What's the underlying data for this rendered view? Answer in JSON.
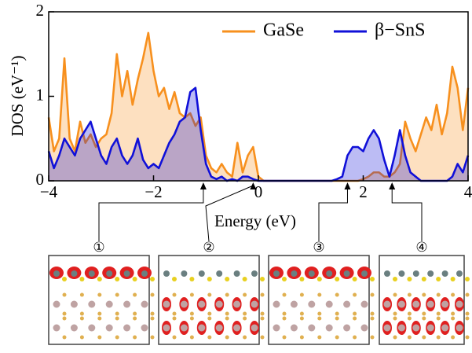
{
  "chart_data": {
    "type": "line",
    "xlabel": "Energy (eV)",
    "ylabel": "DOS (eV⁻¹)",
    "xlim": [
      -4,
      4
    ],
    "ylim": [
      0,
      2
    ],
    "xticks": [
      {
        "value": -4,
        "label": "−4"
      },
      {
        "value": -2,
        "label": "−2"
      },
      0,
      2,
      4
    ],
    "yticks": [
      0,
      1,
      2
    ],
    "fill": true,
    "legend": "top-right",
    "x": [
      -4.0,
      -3.9,
      -3.8,
      -3.7,
      -3.6,
      -3.5,
      -3.4,
      -3.3,
      -3.2,
      -3.1,
      -3.0,
      -2.9,
      -2.8,
      -2.7,
      -2.6,
      -2.5,
      -2.4,
      -2.3,
      -2.2,
      -2.1,
      -2.0,
      -1.9,
      -1.8,
      -1.7,
      -1.6,
      -1.5,
      -1.4,
      -1.3,
      -1.2,
      -1.1,
      -1.0,
      -0.9,
      -0.8,
      -0.7,
      -0.6,
      -0.5,
      -0.4,
      -0.3,
      -0.2,
      -0.1,
      0.0,
      0.1,
      0.2,
      0.3,
      0.4,
      0.5,
      0.6,
      0.7,
      0.8,
      0.9,
      1.0,
      1.1,
      1.2,
      1.3,
      1.4,
      1.5,
      1.6,
      1.7,
      1.8,
      1.9,
      2.0,
      2.1,
      2.2,
      2.3,
      2.4,
      2.5,
      2.6,
      2.7,
      2.8,
      2.9,
      3.0,
      3.1,
      3.2,
      3.3,
      3.4,
      3.5,
      3.6,
      3.7,
      3.8,
      3.9,
      4.0
    ],
    "series": [
      {
        "name": "GaSe",
        "color": "#f7901e",
        "values": [
          0.75,
          0.35,
          0.5,
          1.45,
          0.5,
          0.35,
          0.7,
          0.45,
          0.55,
          0.4,
          0.5,
          0.55,
          0.8,
          1.5,
          1.0,
          1.3,
          0.9,
          1.2,
          1.45,
          1.75,
          1.3,
          1.0,
          1.1,
          0.85,
          1.05,
          0.8,
          0.75,
          0.8,
          0.65,
          0.75,
          0.3,
          0.15,
          0.1,
          0.2,
          0.1,
          0.05,
          0.45,
          0.1,
          0.3,
          0.4,
          0.05,
          0,
          0,
          0,
          0,
          0,
          0,
          0,
          0,
          0,
          0,
          0,
          0,
          0,
          0,
          0,
          0,
          0,
          0,
          0,
          0.02,
          0.05,
          0.1,
          0.1,
          0.05,
          0.05,
          0.1,
          0.2,
          0.7,
          0.5,
          0.35,
          0.55,
          0.75,
          0.6,
          0.9,
          0.55,
          0.8,
          1.35,
          1.1,
          0.6,
          1.1
        ]
      },
      {
        "name": "β−SnS",
        "color": "#1010d8",
        "values": [
          0.35,
          0.15,
          0.3,
          0.5,
          0.4,
          0.3,
          0.5,
          0.6,
          0.7,
          0.5,
          0.3,
          0.2,
          0.4,
          0.5,
          0.3,
          0.2,
          0.3,
          0.5,
          0.25,
          0.15,
          0.2,
          0.15,
          0.3,
          0.45,
          0.55,
          0.7,
          0.75,
          1.05,
          1.1,
          0.6,
          0.2,
          0.05,
          0.02,
          0.05,
          0,
          0.02,
          0,
          0.05,
          0.05,
          0.02,
          0,
          0,
          0,
          0,
          0,
          0,
          0,
          0,
          0,
          0,
          0,
          0,
          0,
          0,
          0,
          0.02,
          0.05,
          0.3,
          0.4,
          0.4,
          0.35,
          0.5,
          0.6,
          0.5,
          0.25,
          0.05,
          0.3,
          0.6,
          0.3,
          0.1,
          0.05,
          0,
          0,
          0,
          0,
          0,
          0,
          0.05,
          0.2,
          0.1,
          0.3
        ]
      }
    ],
    "annotations": [
      {
        "label": "①",
        "x": -1.05
      },
      {
        "label": "②",
        "x": -0.1
      },
      {
        "label": "③",
        "x": 1.7
      },
      {
        "label": "④",
        "x": 2.55
      }
    ]
  }
}
